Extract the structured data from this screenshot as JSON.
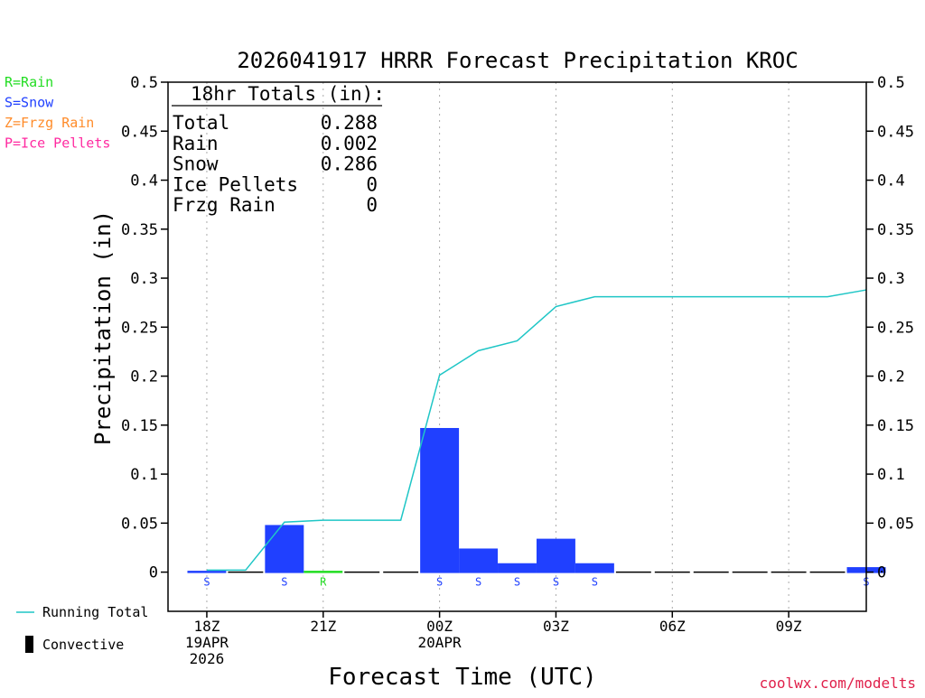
{
  "colors": {
    "rain": "#22dd22",
    "snow": "#2040ff",
    "frzg": "#ff8c2a",
    "ice": "#ff2aa0",
    "running_total": "#1fc6c6",
    "convective": "#000000",
    "credit": "#e0204a"
  },
  "legend_types": [
    {
      "label": "R=Rain",
      "color_key": "rain"
    },
    {
      "label": "S=Snow",
      "color_key": "snow"
    },
    {
      "label": "Z=Frzg Rain",
      "color_key": "frzg"
    },
    {
      "label": "P=Ice Pellets",
      "color_key": "ice"
    }
  ],
  "legend_bottom": {
    "running_total": "Running Total",
    "convective": "Convective"
  },
  "totals": {
    "header": "18hr Totals (in):",
    "rows": [
      {
        "label": "Total",
        "value": "0.288"
      },
      {
        "label": "Rain",
        "value": "0.002"
      },
      {
        "label": "Snow",
        "value": "0.286"
      },
      {
        "label": "Ice Pellets",
        "value": "0"
      },
      {
        "label": "Frzg Rain",
        "value": "0"
      }
    ]
  },
  "credit": "coolwx.com/modelts",
  "chart_data": {
    "type": "bar",
    "title": "2026041917 HRRR Forecast Precipitation KROC",
    "xlabel": "Forecast Time (UTC)",
    "ylabel": "Precipitation (in)",
    "ylim": [
      -0.04,
      0.5
    ],
    "yticks": [
      "0",
      "0.05",
      "0.1",
      "0.15",
      "0.2",
      "0.25",
      "0.3",
      "0.35",
      "0.4",
      "0.45",
      "0.5"
    ],
    "xticks": [
      {
        "hour": 0,
        "lines": [
          "18Z",
          "19APR",
          "2026"
        ]
      },
      {
        "hour": 3,
        "lines": [
          "21Z"
        ]
      },
      {
        "hour": 6,
        "lines": [
          "00Z",
          "20APR"
        ]
      },
      {
        "hour": 9,
        "lines": [
          "03Z"
        ]
      },
      {
        "hour": 12,
        "lines": [
          "06Z"
        ]
      },
      {
        "hour": 15,
        "lines": [
          "09Z"
        ]
      }
    ],
    "xrange_hours": [
      -1,
      17
    ],
    "hours": [
      0,
      1,
      2,
      3,
      4,
      5,
      6,
      7,
      8,
      9,
      10,
      11,
      12,
      13,
      14,
      15,
      16,
      17
    ],
    "hourly_precip": [
      0.002,
      0,
      0.049,
      0.002,
      0,
      0,
      0.148,
      0.025,
      0.01,
      0.035,
      0.01,
      0,
      0,
      0,
      0,
      0,
      0,
      0.006
    ],
    "precip_type": [
      "S",
      "",
      "S",
      "R",
      "",
      "",
      "S",
      "S",
      "S",
      "S",
      "S",
      "",
      "",
      "",
      "",
      "",
      "",
      "S"
    ],
    "running_total": [
      0.002,
      0.002,
      0.051,
      0.053,
      0.053,
      0.053,
      0.201,
      0.226,
      0.236,
      0.271,
      0.281,
      0.281,
      0.281,
      0.281,
      0.281,
      0.281,
      0.281,
      0.288
    ]
  }
}
